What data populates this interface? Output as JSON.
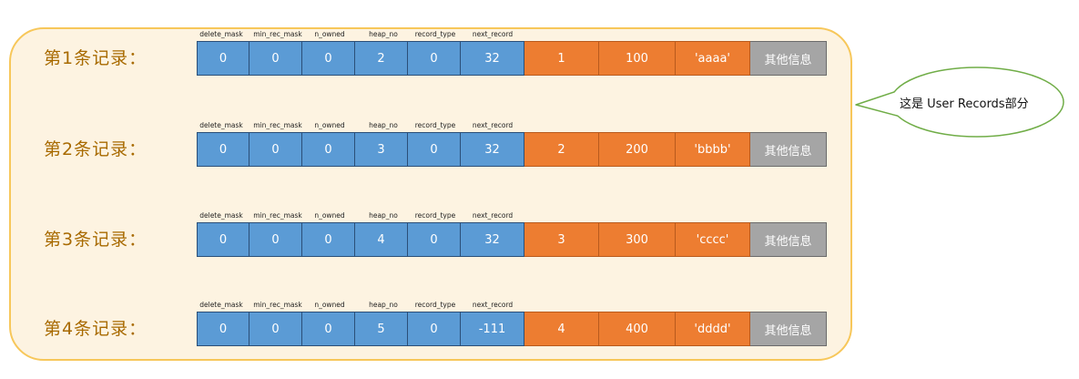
{
  "header_labels": [
    "delete_mask",
    "min_rec_mask",
    "n_owned",
    "heap_no",
    "record_type",
    "next_record"
  ],
  "extra_label": "其他信息",
  "callout": {
    "text": "这是 User Records部分"
  },
  "records": [
    {
      "label": "第1条记录：",
      "header_values": [
        "0",
        "0",
        "0",
        "2",
        "0",
        "32"
      ],
      "data_values": [
        "1",
        "100",
        "'aaaa'"
      ]
    },
    {
      "label": "第2条记录：",
      "header_values": [
        "0",
        "0",
        "0",
        "3",
        "0",
        "32"
      ],
      "data_values": [
        "2",
        "200",
        "'bbbb'"
      ]
    },
    {
      "label": "第3条记录：",
      "header_values": [
        "0",
        "0",
        "0",
        "4",
        "0",
        "32"
      ],
      "data_values": [
        "3",
        "300",
        "'cccc'"
      ]
    },
    {
      "label": "第4条记录：",
      "header_values": [
        "0",
        "0",
        "0",
        "5",
        "0",
        "-111"
      ],
      "data_values": [
        "4",
        "400",
        "'dddd'"
      ]
    }
  ],
  "colors": {
    "header_cell": "#5b9bd5",
    "data_cell": "#ed7d31",
    "extra_cell": "#a5a5a5",
    "panel_bg": "#fdf3e1",
    "panel_border": "#f7c75a",
    "callout_border": "#70ad47"
  }
}
